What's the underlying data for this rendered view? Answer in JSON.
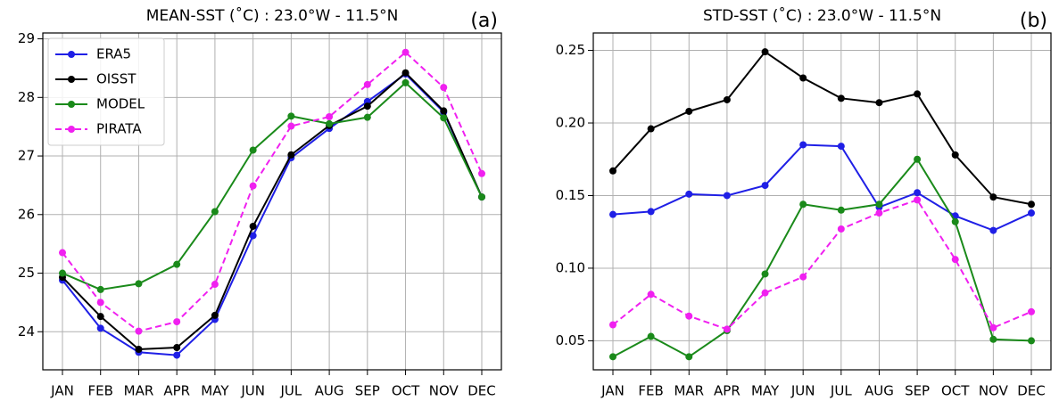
{
  "chart_data": [
    {
      "type": "line",
      "title": "MEAN-SST (˚C) : 23.0°W - 11.5°N",
      "annotation": "(a)",
      "categories": [
        "JAN",
        "FEB",
        "MAR",
        "APR",
        "MAY",
        "JUN",
        "JUL",
        "AUG",
        "SEP",
        "OCT",
        "NOV",
        "DEC"
      ],
      "ylim": [
        23.35,
        29.1
      ],
      "yticks": [
        24,
        25,
        26,
        27,
        28,
        29
      ],
      "grid": true,
      "legend": "upper left",
      "series": [
        {
          "name": "ERA5",
          "color": "#1f1fe6",
          "linestyle": "solid",
          "values": [
            24.88,
            24.06,
            23.65,
            23.6,
            24.21,
            25.64,
            26.97,
            27.47,
            27.93,
            28.4,
            27.75,
            26.3
          ]
        },
        {
          "name": "OISST",
          "color": "#000000",
          "linestyle": "solid",
          "values": [
            24.93,
            24.26,
            23.7,
            23.73,
            24.28,
            25.8,
            27.02,
            27.52,
            27.85,
            28.42,
            27.77,
            26.3
          ]
        },
        {
          "name": "MODEL",
          "color": "#1a8a1a",
          "linestyle": "solid",
          "values": [
            25.0,
            24.72,
            24.82,
            25.15,
            26.05,
            27.1,
            27.68,
            27.55,
            27.66,
            28.25,
            27.65,
            26.3
          ]
        },
        {
          "name": "PIRATA",
          "color": "#f020f0",
          "linestyle": "dashed",
          "values": [
            25.35,
            24.5,
            24.01,
            24.17,
            24.81,
            26.49,
            27.51,
            27.67,
            28.22,
            28.77,
            28.17,
            26.7
          ]
        }
      ]
    },
    {
      "type": "line",
      "title": "STD-SST (˚C) : 23.0°W - 11.5°N",
      "annotation": "(b)",
      "categories": [
        "JAN",
        "FEB",
        "MAR",
        "APR",
        "MAY",
        "JUN",
        "JUL",
        "AUG",
        "SEP",
        "OCT",
        "NOV",
        "DEC"
      ],
      "ylim": [
        0.03,
        0.262
      ],
      "yticks": [
        0.05,
        {
          "value": 0.1,
          "label": "0.10"
        },
        0.15,
        {
          "value": 0.2,
          "label": "0.20"
        },
        0.25
      ],
      "grid": true,
      "series": [
        {
          "color": "#1f1fe6",
          "linestyle": "solid",
          "values": [
            0.137,
            0.139,
            0.151,
            0.15,
            0.157,
            0.185,
            0.184,
            0.142,
            0.152,
            0.136,
            0.126,
            0.138
          ]
        },
        {
          "color": "#000000",
          "linestyle": "solid",
          "values": [
            0.167,
            0.196,
            0.208,
            0.216,
            0.249,
            0.231,
            0.217,
            0.214,
            0.22,
            0.178,
            0.149,
            0.144
          ]
        },
        {
          "color": "#1a8a1a",
          "linestyle": "solid",
          "values": [
            0.039,
            0.053,
            0.039,
            0.057,
            0.096,
            0.144,
            0.14,
            0.144,
            0.175,
            0.132,
            0.051,
            0.05
          ]
        },
        {
          "color": "#f020f0",
          "linestyle": "dashed",
          "values": [
            0.061,
            0.082,
            0.067,
            0.058,
            0.083,
            0.094,
            0.127,
            0.138,
            0.147,
            0.106,
            0.059,
            0.07
          ]
        }
      ]
    }
  ]
}
